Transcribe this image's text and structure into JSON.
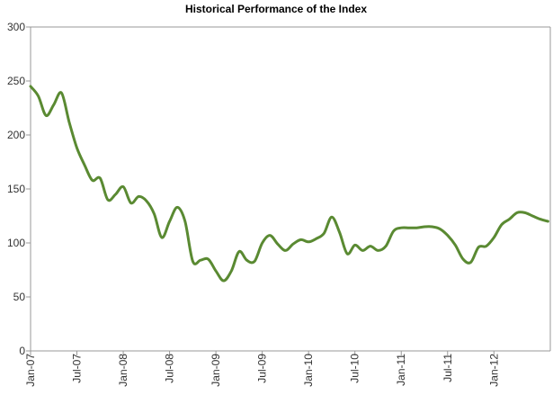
{
  "chart_data": {
    "type": "line",
    "title": "Historical Performance of the Index",
    "xlabel": "",
    "ylabel": "",
    "ylim": [
      0,
      300
    ],
    "yticks": [
      0,
      50,
      100,
      150,
      200,
      250,
      300
    ],
    "xlim": [
      "2007-01",
      "2012-08"
    ],
    "xticks": [
      "Jan-07",
      "Jul-07",
      "Jan-08",
      "Jul-08",
      "Jan-09",
      "Jul-09",
      "Jan-10",
      "Jul-10",
      "Jan-11",
      "Jul-11",
      "Jan-12"
    ],
    "grid": false,
    "legend": "none",
    "line_color": "#5a8a32",
    "series": [
      {
        "x": [
          "2007-01",
          "2007-02",
          "2007-03",
          "2007-04",
          "2007-05",
          "2007-06",
          "2007-07",
          "2007-08",
          "2007-09",
          "2007-10",
          "2007-11",
          "2007-12",
          "2008-01",
          "2008-02",
          "2008-03",
          "2008-04",
          "2008-05",
          "2008-06",
          "2008-07",
          "2008-08",
          "2008-09",
          "2008-10",
          "2008-11",
          "2008-12",
          "2009-01",
          "2009-02",
          "2009-03",
          "2009-04",
          "2009-05",
          "2009-06",
          "2009-07",
          "2009-08",
          "2009-09",
          "2009-10",
          "2009-11",
          "2009-12",
          "2010-01",
          "2010-02",
          "2010-03",
          "2010-04",
          "2010-05",
          "2010-06",
          "2010-07",
          "2010-08",
          "2010-09",
          "2010-10",
          "2010-11",
          "2010-12",
          "2011-01",
          "2011-02",
          "2011-03",
          "2011-04",
          "2011-05",
          "2011-06",
          "2011-07",
          "2011-08",
          "2011-09",
          "2011-10",
          "2011-11",
          "2011-12",
          "2012-01",
          "2012-02",
          "2012-03",
          "2012-04",
          "2012-05",
          "2012-06",
          "2012-07",
          "2012-08"
        ],
        "values": [
          245,
          236,
          218,
          228,
          239,
          212,
          188,
          172,
          158,
          160,
          140,
          145,
          152,
          137,
          143,
          139,
          127,
          105,
          120,
          133,
          120,
          83,
          84,
          85,
          74,
          65,
          74,
          92,
          84,
          83,
          100,
          107,
          99,
          93,
          99,
          103,
          101,
          104,
          109,
          124,
          110,
          90,
          98,
          93,
          97,
          93,
          97,
          111,
          114,
          114,
          114,
          115,
          115,
          113,
          107,
          98,
          85,
          82,
          96,
          97,
          105,
          117,
          122,
          128,
          128,
          125,
          122,
          120
        ]
      }
    ]
  }
}
